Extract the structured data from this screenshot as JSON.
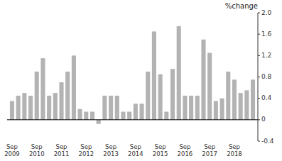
{
  "chart_data": {
    "type": "bar",
    "title": "%change",
    "categories": [
      "Sep\n2009",
      null,
      null,
      null,
      "Sep\n2010",
      null,
      null,
      null,
      "Sep\n2011",
      null,
      null,
      null,
      "Sep\n2012",
      null,
      null,
      null,
      "Sep\n2013",
      null,
      null,
      null,
      "Sep\n2014",
      null,
      null,
      null,
      "Sep\n2015",
      null,
      null,
      null,
      "Sep\n2016",
      null,
      null,
      null,
      "Sep\n2017",
      null,
      null,
      null,
      "Sep\n2018",
      null,
      null,
      null
    ],
    "values": [
      0.35,
      0.45,
      0.5,
      0.45,
      0.9,
      1.15,
      0.45,
      0.5,
      0.7,
      0.9,
      1.2,
      0.2,
      0.15,
      0.15,
      -0.08,
      0.45,
      0.45,
      0.45,
      0.15,
      0.15,
      0.3,
      0.3,
      0.9,
      1.65,
      0.85,
      0.15,
      0.95,
      1.75,
      0.45,
      0.45,
      0.45,
      1.5,
      1.25,
      0.35,
      0.4,
      0.9,
      0.75,
      0.5,
      0.55,
      0.75
    ],
    "color": "#b3b3b3",
    "ylim": [
      -0.4,
      2.0
    ],
    "yticks": [
      -0.4,
      0,
      0.4,
      0.8,
      1.2,
      1.6,
      {
        "value": 2.0,
        "label": "2.0"
      }
    ],
    "grid": false
  }
}
